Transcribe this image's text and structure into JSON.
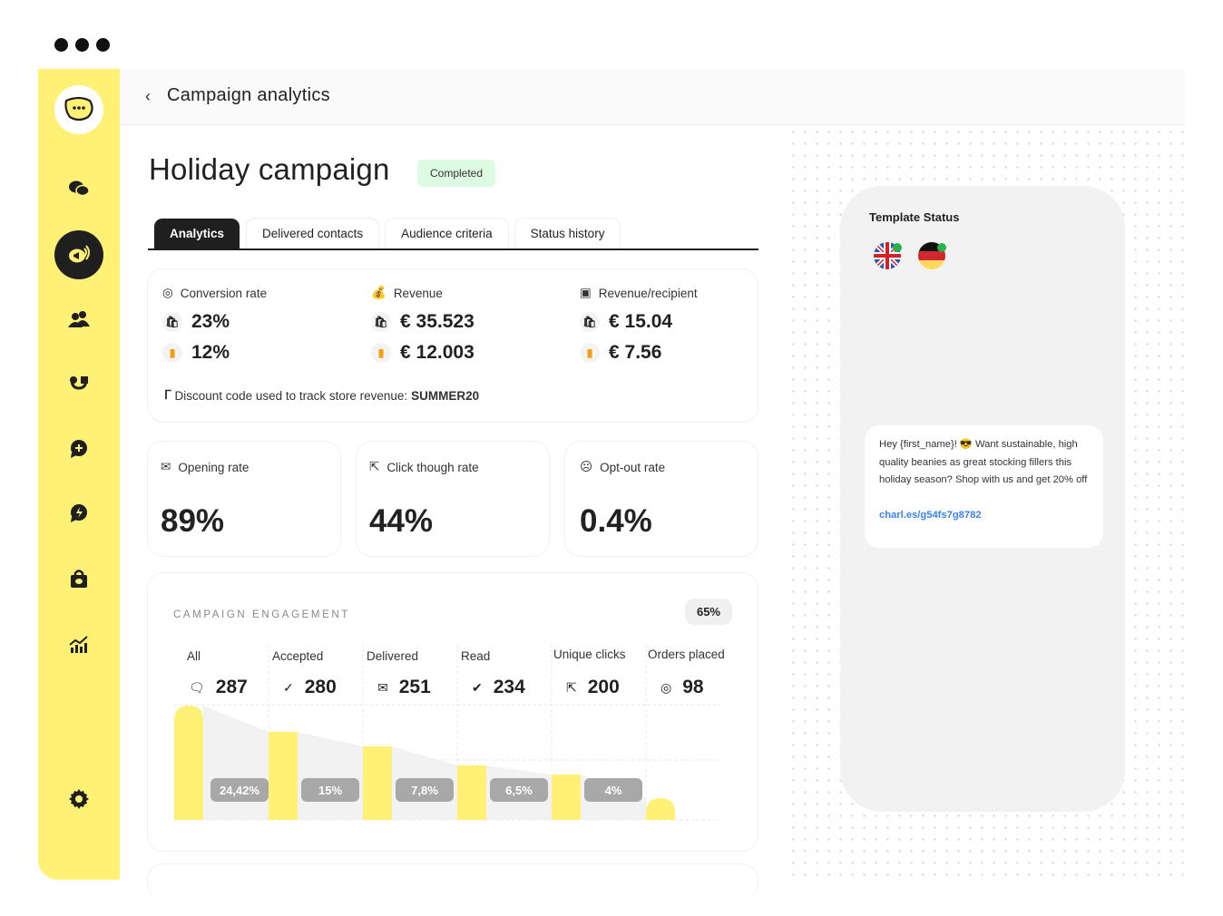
{
  "window": {
    "controls": [
      "dot",
      "dot",
      "dot"
    ]
  },
  "sidebar": {
    "items": [
      "logo",
      "chats",
      "campaigns",
      "contacts",
      "integrations",
      "add-message",
      "automations",
      "shop",
      "analytics",
      "settings"
    ],
    "active": "campaigns",
    "color": "#fff176"
  },
  "header": {
    "back": "‹",
    "title": "Campaign analytics"
  },
  "campaign": {
    "title": "Holiday campaign",
    "status": "Completed",
    "status_color": "#ddfbe2"
  },
  "tabs": [
    {
      "label": "Analytics",
      "active": true
    },
    {
      "label": "Delivered contacts"
    },
    {
      "label": "Audience criteria"
    },
    {
      "label": "Status history"
    }
  ],
  "revenue": {
    "conversion": {
      "label": "Conversion rate",
      "v1": "23%",
      "v2": "12%"
    },
    "revenue": {
      "label": "Revenue",
      "v1": "€ 35.523",
      "v2": "€ 12.003"
    },
    "per_recipient": {
      "label": "Revenue/recipient",
      "v1": "€ 15.04",
      "v2": "€ 7.56"
    },
    "discount_label": "Discount code used to track store revenue:",
    "discount_code": "SUMMER20"
  },
  "rates": [
    {
      "label": "Opening rate",
      "value": "89%"
    },
    {
      "label": "Click though rate",
      "value": "44%"
    },
    {
      "label": "Opt-out rate",
      "value": "0.4%"
    }
  ],
  "engagement": {
    "title": "CAMPAIGN ENGAGEMENT",
    "badge": "65%",
    "columns": [
      {
        "label": "All",
        "value": "287",
        "icon": "chat-icon",
        "rate": "24,42%"
      },
      {
        "label": "Accepted",
        "value": "280",
        "icon": "check-icon",
        "rate": "15%"
      },
      {
        "label": "Delivered",
        "value": "251",
        "icon": "envelope-icon",
        "rate": "7,8%"
      },
      {
        "label": "Read",
        "value": "234",
        "icon": "double-check-icon",
        "rate": "6,5%"
      },
      {
        "label": "Unique clicks",
        "value": "200",
        "icon": "cursor-icon",
        "rate": "4%"
      },
      {
        "label": "Orders placed",
        "value": "98",
        "icon": "target-icon"
      }
    ],
    "bar_color": "#fff176",
    "area_color": "#f2f2f2"
  },
  "template": {
    "title": "Template Status",
    "languages": [
      "English (UK)",
      "German"
    ],
    "message": "Hey {first_name}! 😎 Want sustainable, high quality beanies as great stocking fillers this holiday season? Shop with us and get 20% off",
    "link": "charl.es/g54fs7g8782"
  }
}
